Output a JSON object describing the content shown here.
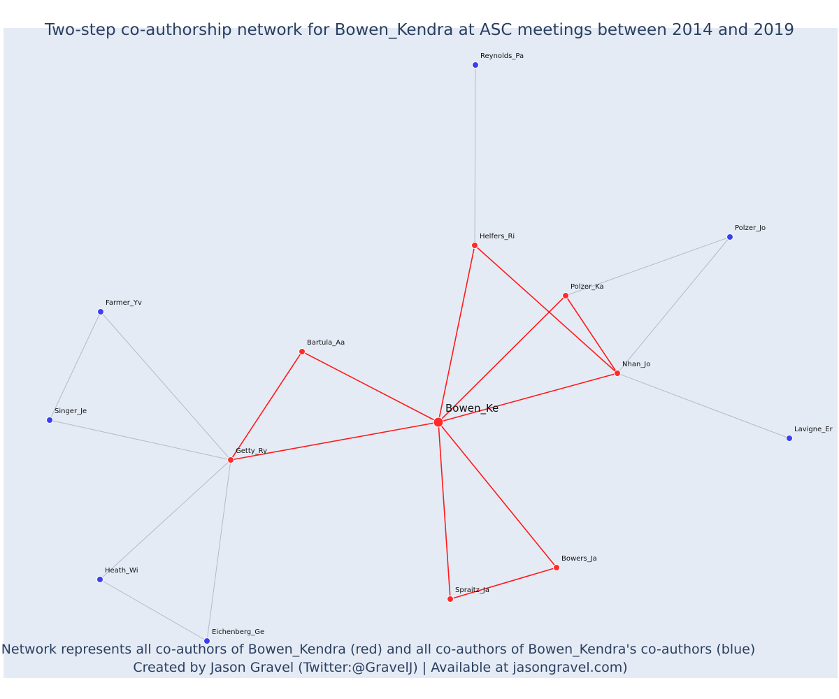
{
  "title": "Two-step co-authorship network for Bowen_Kendra at ASC meetings between 2014 and 2019",
  "caption_line1": "Network represents all co-authors of Bowen_Kendra (red) and all co-authors of Bowen_Kendra's co-authors (blue)",
  "caption_line2": "Created by Jason Gravel (Twitter:@GravelJ) | Available at jasongravel.com)",
  "colors": {
    "background": "#e5ebf5",
    "first_degree_node": "#ff2b2b",
    "second_degree_node": "#3b3ff0",
    "first_degree_edge": "#ff1a1a",
    "second_degree_edge": "#b5b9c8",
    "text": "#2a3f5f"
  },
  "nodes": [
    {
      "id": "Bowen_Ke",
      "label": "Bowen_Ke",
      "group": "focal"
    },
    {
      "id": "Reynolds_Pa",
      "label": "Reynolds_Pa",
      "group": "second"
    },
    {
      "id": "Helfers_Ri",
      "label": "Helfers_Ri",
      "group": "first"
    },
    {
      "id": "Polzer_Jo",
      "label": "Polzer_Jo",
      "group": "second"
    },
    {
      "id": "Polzer_Ka",
      "label": "Polzer_Ka",
      "group": "first"
    },
    {
      "id": "Nhan_Jo",
      "label": "Nhan_Jo",
      "group": "first"
    },
    {
      "id": "Lavigne_Er",
      "label": "Lavigne_Er",
      "group": "second"
    },
    {
      "id": "Farmer_Yv",
      "label": "Farmer_Yv",
      "group": "second"
    },
    {
      "id": "Bartula_Aa",
      "label": "Bartula_Aa",
      "group": "first"
    },
    {
      "id": "Singer_Je",
      "label": "Singer_Je",
      "group": "second"
    },
    {
      "id": "Getty_Ry",
      "label": "Getty_Ry",
      "group": "first"
    },
    {
      "id": "Heath_Wi",
      "label": "Heath_Wi",
      "group": "second"
    },
    {
      "id": "Eichenberg_Ge",
      "label": "Eichenberg_Ge",
      "group": "second"
    },
    {
      "id": "Bowers_Ja",
      "label": "Bowers_Ja",
      "group": "first"
    },
    {
      "id": "Spraitz_Ja",
      "label": "Spraitz_Ja",
      "group": "first"
    }
  ],
  "edges": [
    {
      "source": "Bowen_Ke",
      "target": "Helfers_Ri",
      "type": "first"
    },
    {
      "source": "Bowen_Ke",
      "target": "Polzer_Ka",
      "type": "first"
    },
    {
      "source": "Bowen_Ke",
      "target": "Nhan_Jo",
      "type": "first"
    },
    {
      "source": "Bowen_Ke",
      "target": "Bartula_Aa",
      "type": "first"
    },
    {
      "source": "Bowen_Ke",
      "target": "Getty_Ry",
      "type": "first"
    },
    {
      "source": "Bowen_Ke",
      "target": "Bowers_Ja",
      "type": "first"
    },
    {
      "source": "Bowen_Ke",
      "target": "Spraitz_Ja",
      "type": "first"
    },
    {
      "source": "Helfers_Ri",
      "target": "Nhan_Jo",
      "type": "first"
    },
    {
      "source": "Polzer_Ka",
      "target": "Nhan_Jo",
      "type": "first"
    },
    {
      "source": "Bartula_Aa",
      "target": "Getty_Ry",
      "type": "first"
    },
    {
      "source": "Spraitz_Ja",
      "target": "Bowers_Ja",
      "type": "first"
    },
    {
      "source": "Helfers_Ri",
      "target": "Reynolds_Pa",
      "type": "second"
    },
    {
      "source": "Polzer_Ka",
      "target": "Polzer_Jo",
      "type": "second"
    },
    {
      "source": "Nhan_Jo",
      "target": "Polzer_Jo",
      "type": "second"
    },
    {
      "source": "Nhan_Jo",
      "target": "Lavigne_Er",
      "type": "second"
    },
    {
      "source": "Getty_Ry",
      "target": "Farmer_Yv",
      "type": "second"
    },
    {
      "source": "Getty_Ry",
      "target": "Singer_Je",
      "type": "second"
    },
    {
      "source": "Farmer_Yv",
      "target": "Singer_Je",
      "type": "second"
    },
    {
      "source": "Getty_Ry",
      "target": "Heath_Wi",
      "type": "second"
    },
    {
      "source": "Getty_Ry",
      "target": "Eichenberg_Ge",
      "type": "second"
    },
    {
      "source": "Heath_Wi",
      "target": "Eichenberg_Ge",
      "type": "second"
    }
  ]
}
